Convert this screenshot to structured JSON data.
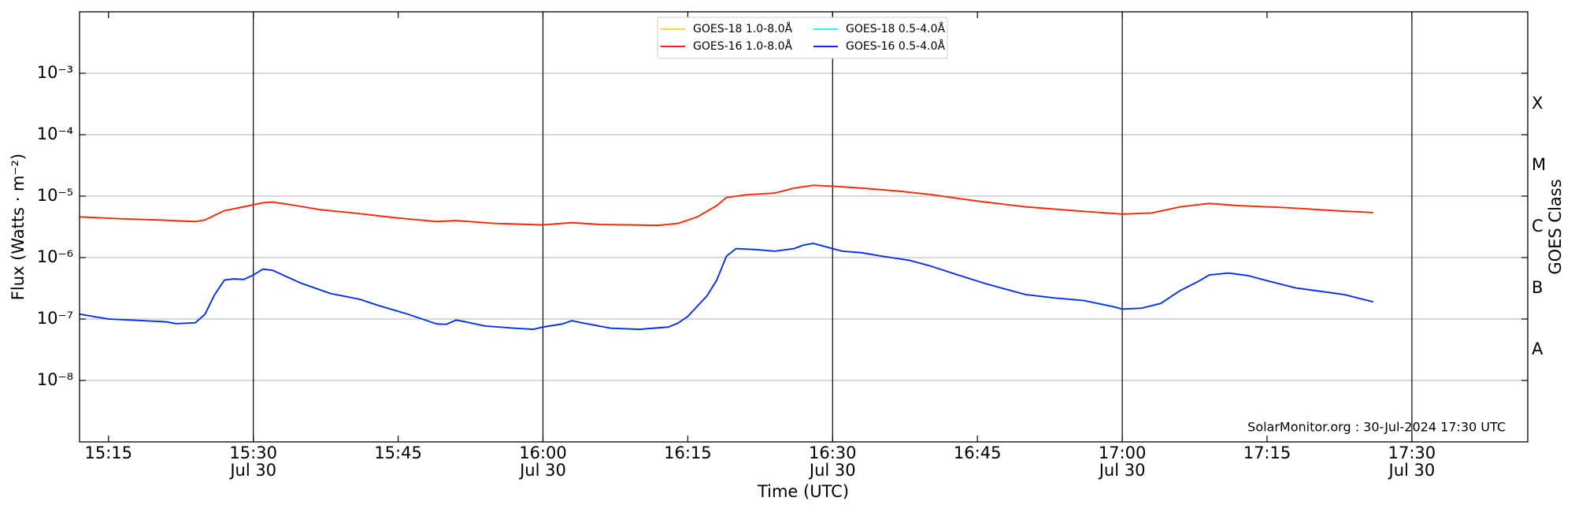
{
  "chart_data": {
    "type": "line",
    "ylabel": "Flux (Watts · m⁻²)",
    "xlabel": "Time (UTC)",
    "y2label": "GOES Class",
    "annotation": "SolarMonitor.org : 30-Jul-2024 17:30 UTC",
    "log_y": true,
    "grid": true,
    "legend_loc": "upper center",
    "xlim": [
      "15:12",
      "17:42"
    ],
    "ylim": [
      1e-09,
      0.01
    ],
    "yticks": [
      {
        "value": 1e-08,
        "label": "10⁻⁸"
      },
      {
        "value": 1e-07,
        "label": "10⁻⁷"
      },
      {
        "value": 1e-06,
        "label": "10⁻⁶"
      },
      {
        "value": 1e-05,
        "label": "10⁻⁵"
      },
      {
        "value": 0.0001,
        "label": "10⁻⁴"
      },
      {
        "value": 0.001,
        "label": "10⁻³"
      }
    ],
    "xticks": [
      {
        "value": "15:15",
        "label": "15:15"
      },
      {
        "value": "15:30",
        "label": "15:30",
        "date": "Jul 30"
      },
      {
        "value": "15:45",
        "label": "15:45"
      },
      {
        "value": "16:00",
        "label": "16:00",
        "date": "Jul 30"
      },
      {
        "value": "16:15",
        "label": "16:15"
      },
      {
        "value": "16:30",
        "label": "16:30",
        "date": "Jul 30"
      },
      {
        "value": "16:45",
        "label": "16:45"
      },
      {
        "value": "17:00",
        "label": "17:00",
        "date": "Jul 30"
      },
      {
        "value": "17:15",
        "label": "17:15"
      },
      {
        "value": "17:30",
        "label": "17:30",
        "date": "Jul 30"
      }
    ],
    "y2ticks": [
      {
        "value": 1e-08,
        "label": "A"
      },
      {
        "value": 1e-07,
        "label": "B"
      },
      {
        "value": 1e-06,
        "label": "C"
      },
      {
        "value": 1e-05,
        "label": "M"
      },
      {
        "value": 0.0001,
        "label": "X"
      }
    ],
    "series": [
      {
        "name": "GOES-18 1.0-8.0Å",
        "color": "#ffd700",
        "x": [
          "15:12",
          "15:16",
          "15:20",
          "15:24",
          "15:25",
          "15:27",
          "15:29",
          "15:31",
          "15:32",
          "15:34",
          "15:37",
          "15:40",
          "15:45",
          "15:49",
          "15:51",
          "15:55",
          "16:00",
          "16:03",
          "16:06",
          "16:12",
          "16:14",
          "16:16",
          "16:18",
          "16:19",
          "16:21",
          "16:24",
          "16:26",
          "16:28",
          "16:30",
          "16:33",
          "16:37",
          "16:40",
          "16:45",
          "16:50",
          "16:55",
          "17:00",
          "17:03",
          "17:06",
          "17:09",
          "17:12",
          "17:17",
          "17:22",
          "17:26"
        ],
        "values": [
          4.6e-06,
          4.3e-06,
          4.1e-06,
          3.85e-06,
          4.1e-06,
          5.8e-06,
          6.7e-06,
          7.8e-06,
          8e-06,
          7.2e-06,
          6e-06,
          5.4e-06,
          4.4e-06,
          3.85e-06,
          4e-06,
          3.6e-06,
          3.4e-06,
          3.7e-06,
          3.45e-06,
          3.35e-06,
          3.6e-06,
          4.6e-06,
          7e-06,
          9.5e-06,
          1.05e-05,
          1.12e-05,
          1.35e-05,
          1.5e-05,
          1.45e-05,
          1.35e-05,
          1.2e-05,
          1.07e-05,
          8.3e-06,
          6.7e-06,
          5.8e-06,
          5.1e-06,
          5.3e-06,
          6.7e-06,
          7.6e-06,
          7e-06,
          6.5e-06,
          5.8e-06,
          5.4e-06
        ]
      },
      {
        "name": "GOES-16 1.0-8.0Å",
        "color": "#ff0000",
        "x": [
          "15:12",
          "15:16",
          "15:20",
          "15:24",
          "15:25",
          "15:27",
          "15:29",
          "15:31",
          "15:32",
          "15:34",
          "15:37",
          "15:40",
          "15:45",
          "15:49",
          "15:51",
          "15:55",
          "16:00",
          "16:03",
          "16:06",
          "16:12",
          "16:14",
          "16:16",
          "16:18",
          "16:19",
          "16:21",
          "16:24",
          "16:26",
          "16:28",
          "16:30",
          "16:33",
          "16:37",
          "16:40",
          "16:45",
          "16:50",
          "16:55",
          "17:00",
          "17:03",
          "17:06",
          "17:09",
          "17:12",
          "17:17",
          "17:22",
          "17:26"
        ],
        "values": [
          4.6e-06,
          4.3e-06,
          4.1e-06,
          3.85e-06,
          4.1e-06,
          5.8e-06,
          6.7e-06,
          7.8e-06,
          8e-06,
          7.2e-06,
          6e-06,
          5.4e-06,
          4.4e-06,
          3.85e-06,
          4e-06,
          3.6e-06,
          3.4e-06,
          3.7e-06,
          3.45e-06,
          3.35e-06,
          3.6e-06,
          4.6e-06,
          7e-06,
          9.5e-06,
          1.05e-05,
          1.12e-05,
          1.35e-05,
          1.5e-05,
          1.45e-05,
          1.35e-05,
          1.2e-05,
          1.07e-05,
          8.3e-06,
          6.7e-06,
          5.8e-06,
          5.1e-06,
          5.3e-06,
          6.7e-06,
          7.6e-06,
          7e-06,
          6.5e-06,
          5.8e-06,
          5.4e-06
        ]
      },
      {
        "name": "GOES-18 0.5-4.0Å",
        "color": "#00ffff",
        "x": [
          "15:12",
          "15:15",
          "15:18",
          "15:21",
          "15:22",
          "15:24",
          "15:25",
          "15:26",
          "15:27",
          "15:28",
          "15:29",
          "15:30",
          "15:31",
          "15:32",
          "15:35",
          "15:38",
          "15:41",
          "15:43",
          "15:46",
          "15:49",
          "15:50",
          "15:51",
          "15:52",
          "15:54",
          "15:57",
          "15:59",
          "16:00",
          "16:02",
          "16:03",
          "16:04",
          "16:07",
          "16:10",
          "16:13",
          "16:14",
          "16:15",
          "16:17",
          "16:18",
          "16:19",
          "16:20",
          "16:22",
          "16:24",
          "16:26",
          "16:27",
          "16:28",
          "16:30",
          "16:31",
          "16:33",
          "16:35",
          "16:38",
          "16:40",
          "16:43",
          "16:46",
          "16:50",
          "16:53",
          "16:56",
          "16:59",
          "17:00",
          "17:02",
          "17:04",
          "17:06",
          "17:08",
          "17:09",
          "17:11",
          "17:13",
          "17:15",
          "17:18",
          "17:20",
          "17:23",
          "17:26"
        ],
        "values": [
          1.2e-07,
          1e-07,
          9.5e-08,
          9e-08,
          8.4e-08,
          8.7e-08,
          1.2e-07,
          2.5e-07,
          4.3e-07,
          4.5e-07,
          4.4e-07,
          5.2e-07,
          6.5e-07,
          6.2e-07,
          3.8e-07,
          2.6e-07,
          2.1e-07,
          1.65e-07,
          1.2e-07,
          8.3e-08,
          8.2e-08,
          9.6e-08,
          9e-08,
          7.7e-08,
          7.1e-08,
          6.8e-08,
          7.4e-08,
          8.3e-08,
          9.4e-08,
          8.7e-08,
          7.1e-08,
          6.8e-08,
          7.4e-08,
          8.6e-08,
          1.1e-07,
          2.4e-07,
          4.3e-07,
          1.05e-06,
          1.4e-06,
          1.35e-06,
          1.27e-06,
          1.4e-06,
          1.6e-06,
          1.7e-06,
          1.4e-06,
          1.27e-06,
          1.2e-06,
          1.06e-06,
          9e-07,
          7.4e-07,
          5.2e-07,
          3.7e-07,
          2.5e-07,
          2.2e-07,
          2e-07,
          1.6e-07,
          1.45e-07,
          1.5e-07,
          1.8e-07,
          2.9e-07,
          4.2e-07,
          5.2e-07,
          5.6e-07,
          5.1e-07,
          4.2e-07,
          3.2e-07,
          2.9e-07,
          2.5e-07,
          1.9e-07
        ]
      },
      {
        "name": "GOES-16 0.5-4.0Å",
        "color": "#0000ff",
        "x": [
          "15:12",
          "15:15",
          "15:18",
          "15:21",
          "15:22",
          "15:24",
          "15:25",
          "15:26",
          "15:27",
          "15:28",
          "15:29",
          "15:30",
          "15:31",
          "15:32",
          "15:35",
          "15:38",
          "15:41",
          "15:43",
          "15:46",
          "15:49",
          "15:50",
          "15:51",
          "15:52",
          "15:54",
          "15:57",
          "15:59",
          "16:00",
          "16:02",
          "16:03",
          "16:04",
          "16:07",
          "16:10",
          "16:13",
          "16:14",
          "16:15",
          "16:17",
          "16:18",
          "16:19",
          "16:20",
          "16:22",
          "16:24",
          "16:26",
          "16:27",
          "16:28",
          "16:30",
          "16:31",
          "16:33",
          "16:35",
          "16:38",
          "16:40",
          "16:43",
          "16:46",
          "16:50",
          "16:53",
          "16:56",
          "16:59",
          "17:00",
          "17:02",
          "17:04",
          "17:06",
          "17:08",
          "17:09",
          "17:11",
          "17:13",
          "17:15",
          "17:18",
          "17:20",
          "17:23",
          "17:26"
        ],
        "values": [
          1.2e-07,
          1e-07,
          9.5e-08,
          9e-08,
          8.4e-08,
          8.7e-08,
          1.2e-07,
          2.5e-07,
          4.3e-07,
          4.5e-07,
          4.4e-07,
          5.2e-07,
          6.5e-07,
          6.2e-07,
          3.8e-07,
          2.6e-07,
          2.1e-07,
          1.65e-07,
          1.2e-07,
          8.3e-08,
          8.2e-08,
          9.6e-08,
          9e-08,
          7.7e-08,
          7.1e-08,
          6.8e-08,
          7.4e-08,
          8.3e-08,
          9.4e-08,
          8.7e-08,
          7.1e-08,
          6.8e-08,
          7.4e-08,
          8.6e-08,
          1.1e-07,
          2.4e-07,
          4.3e-07,
          1.05e-06,
          1.4e-06,
          1.35e-06,
          1.27e-06,
          1.4e-06,
          1.6e-06,
          1.7e-06,
          1.4e-06,
          1.27e-06,
          1.2e-06,
          1.06e-06,
          9e-07,
          7.4e-07,
          5.2e-07,
          3.7e-07,
          2.5e-07,
          2.2e-07,
          2e-07,
          1.6e-07,
          1.45e-07,
          1.5e-07,
          1.8e-07,
          2.9e-07,
          4.2e-07,
          5.2e-07,
          5.6e-07,
          5.1e-07,
          4.2e-07,
          3.2e-07,
          2.9e-07,
          2.5e-07,
          1.9e-07
        ]
      }
    ]
  }
}
